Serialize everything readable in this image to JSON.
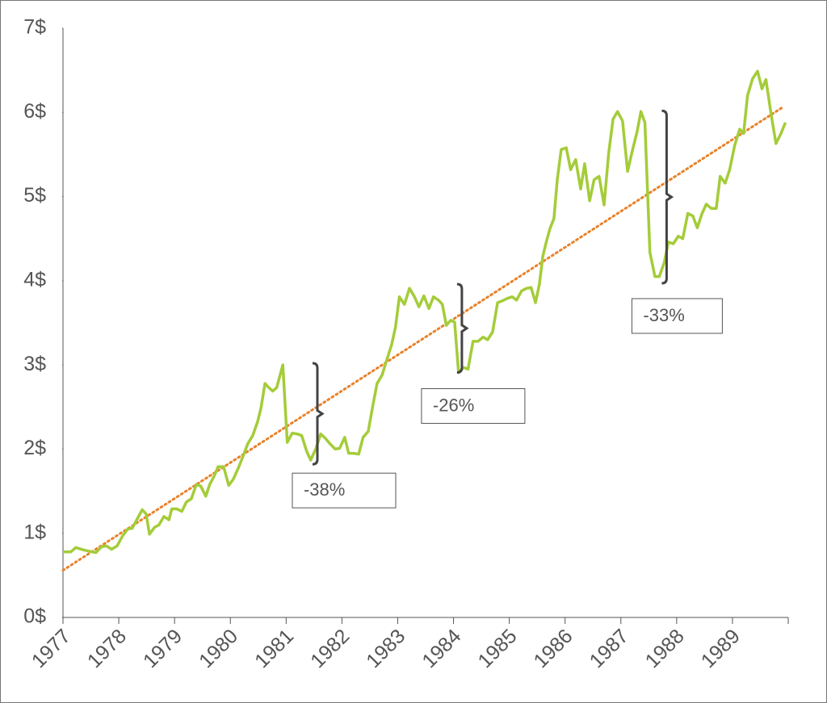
{
  "chart_data": {
    "type": "line",
    "xlim": [
      1977,
      1990
    ],
    "xticks": [
      1977,
      1978,
      1979,
      1980,
      1981,
      1982,
      1983,
      1984,
      1985,
      1986,
      1987,
      1988,
      1989
    ],
    "ylim": [
      0,
      7
    ],
    "yticks": [
      {
        "value": 0,
        "label": "0$"
      },
      {
        "value": 1,
        "label": "1$"
      },
      {
        "value": 2,
        "label": "2$"
      },
      {
        "value": 3,
        "label": "3$"
      },
      {
        "value": 4,
        "label": "4$"
      },
      {
        "value": 5,
        "label": "5$"
      },
      {
        "value": 6,
        "label": "6$"
      },
      {
        "value": 7,
        "label": "7$"
      }
    ],
    "series": [
      {
        "color": "#a4cc39",
        "x": [
          1977.0,
          1977.14,
          1977.23,
          1977.38,
          1977.52,
          1977.59,
          1977.69,
          1977.78,
          1977.87,
          1977.97,
          1978.07,
          1978.16,
          1978.24,
          1978.33,
          1978.42,
          1978.49,
          1978.55,
          1978.64,
          1978.72,
          1978.81,
          1978.9,
          1978.95,
          1979.04,
          1979.13,
          1979.21,
          1979.3,
          1979.39,
          1979.47,
          1979.56,
          1979.63,
          1979.71,
          1979.78,
          1979.88,
          1979.97,
          1980.05,
          1980.14,
          1980.23,
          1980.31,
          1980.4,
          1980.49,
          1980.55,
          1980.62,
          1980.69,
          1980.76,
          1980.83,
          1980.94,
          1981.02,
          1981.11,
          1981.2,
          1981.28,
          1981.37,
          1981.44,
          1981.53,
          1981.62,
          1981.7,
          1981.79,
          1981.88,
          1981.96,
          1982.05,
          1982.12,
          1982.21,
          1982.3,
          1982.38,
          1982.47,
          1982.56,
          1982.63,
          1982.72,
          1982.8,
          1982.89,
          1982.96,
          1983.03,
          1983.12,
          1983.21,
          1983.3,
          1983.38,
          1983.47,
          1983.56,
          1983.64,
          1983.73,
          1983.8,
          1983.87,
          1983.95,
          1984.02,
          1984.09,
          1984.18,
          1984.26,
          1984.35,
          1984.44,
          1984.53,
          1984.61,
          1984.7,
          1984.79,
          1984.87,
          1984.96,
          1985.05,
          1985.13,
          1985.22,
          1985.31,
          1985.39,
          1985.47,
          1985.54,
          1985.6,
          1985.67,
          1985.73,
          1985.8,
          1985.86,
          1985.93,
          1986.02,
          1986.1,
          1986.19,
          1986.28,
          1986.35,
          1986.44,
          1986.52,
          1986.61,
          1986.7,
          1986.78,
          1986.86,
          1986.94,
          1987.03,
          1987.12,
          1987.2,
          1987.29,
          1987.36,
          1987.43,
          1987.52,
          1987.61,
          1987.69,
          1987.78,
          1987.85,
          1987.94,
          1988.03,
          1988.11,
          1988.2,
          1988.29,
          1988.37,
          1988.45,
          1988.53,
          1988.62,
          1988.71,
          1988.78,
          1988.87,
          1988.95,
          1989.04,
          1989.13,
          1989.2,
          1989.27,
          1989.36,
          1989.45,
          1989.53,
          1989.6,
          1989.69,
          1989.78,
          1989.87,
          1989.95
        ],
        "values": [
          0.78,
          0.78,
          0.83,
          0.8,
          0.78,
          0.77,
          0.84,
          0.85,
          0.81,
          0.85,
          0.97,
          1.05,
          1.06,
          1.17,
          1.28,
          1.23,
          0.99,
          1.07,
          1.1,
          1.2,
          1.16,
          1.29,
          1.29,
          1.26,
          1.37,
          1.41,
          1.58,
          1.56,
          1.44,
          1.58,
          1.68,
          1.79,
          1.79,
          1.57,
          1.64,
          1.77,
          1.92,
          2.06,
          2.16,
          2.33,
          2.49,
          2.78,
          2.73,
          2.69,
          2.73,
          3.0,
          2.08,
          2.19,
          2.18,
          2.16,
          1.97,
          1.87,
          2.0,
          2.18,
          2.13,
          2.06,
          2.0,
          2.01,
          2.14,
          1.95,
          1.95,
          1.94,
          2.14,
          2.21,
          2.54,
          2.78,
          2.88,
          3.05,
          3.24,
          3.45,
          3.81,
          3.72,
          3.91,
          3.81,
          3.69,
          3.82,
          3.67,
          3.81,
          3.77,
          3.72,
          3.47,
          3.53,
          3.51,
          2.91,
          2.97,
          2.95,
          3.28,
          3.28,
          3.33,
          3.3,
          3.39,
          3.74,
          3.76,
          3.79,
          3.81,
          3.77,
          3.88,
          3.91,
          3.92,
          3.74,
          3.96,
          4.29,
          4.48,
          4.62,
          4.74,
          5.2,
          5.56,
          5.58,
          5.32,
          5.44,
          5.09,
          5.39,
          4.95,
          5.2,
          5.24,
          4.9,
          5.51,
          5.92,
          6.01,
          5.9,
          5.3,
          5.53,
          5.77,
          6.01,
          5.88,
          4.34,
          4.05,
          4.05,
          4.22,
          4.46,
          4.44,
          4.53,
          4.5,
          4.8,
          4.77,
          4.63,
          4.79,
          4.91,
          4.86,
          4.86,
          5.24,
          5.16,
          5.32,
          5.61,
          5.8,
          5.75,
          6.2,
          6.4,
          6.49,
          6.28,
          6.39,
          5.99,
          5.63,
          5.75,
          5.88
        ]
      }
    ],
    "trend": {
      "color": "#e8822a",
      "x": [
        1977,
        1989.92
      ],
      "values": [
        0.56,
        6.07
      ]
    },
    "annotations": [
      {
        "text": "-38%",
        "x": 1981.56,
        "from": 3.02,
        "to": 1.82
      },
      {
        "text": "-26%",
        "x": 1984.15,
        "from": 3.96,
        "to": 2.91
      },
      {
        "text": "-33%",
        "x": 1987.82,
        "from": 6.02,
        "to": 3.97
      }
    ]
  }
}
